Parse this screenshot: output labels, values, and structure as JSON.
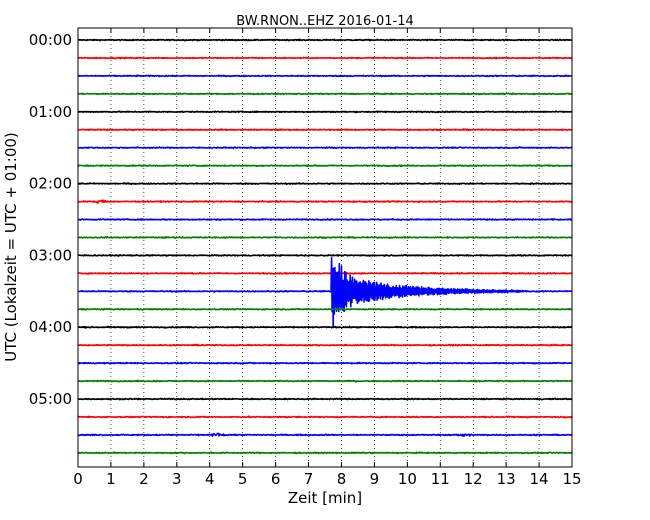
{
  "chart_data": {
    "type": "line",
    "title": "BW.RNON..EHZ 2016-01-14",
    "xlabel": "Zeit  [min]",
    "ylabel": "UTC (Lokalzeit = UTC + 01:00)",
    "xlim": [
      0,
      15
    ],
    "x_ticks": [
      "0",
      "1",
      "2",
      "3",
      "4",
      "5",
      "6",
      "7",
      "8",
      "9",
      "10",
      "11",
      "12",
      "13",
      "14",
      "15"
    ],
    "y_tick_labels": [
      "00:00",
      "01:00",
      "02:00",
      "03:00",
      "04:00",
      "05:00"
    ],
    "grid": "vertical dotted",
    "trace_minutes_per_line": 15,
    "trace_count": 24,
    "trace_colors": [
      "#000000",
      "#ff0000",
      "#0000ff",
      "#008000"
    ],
    "event": {
      "trace_start": "03:30",
      "onset_min": 7.7,
      "peak_amplitude_traces": 2.3,
      "coda_end_min": 13.0
    },
    "minor_events": [
      {
        "trace_start": "02:15",
        "minute": 0.7
      },
      {
        "trace_start": "05:30",
        "minute": 4.2
      },
      {
        "trace_start": "05:30",
        "minute": 11.7
      }
    ]
  }
}
